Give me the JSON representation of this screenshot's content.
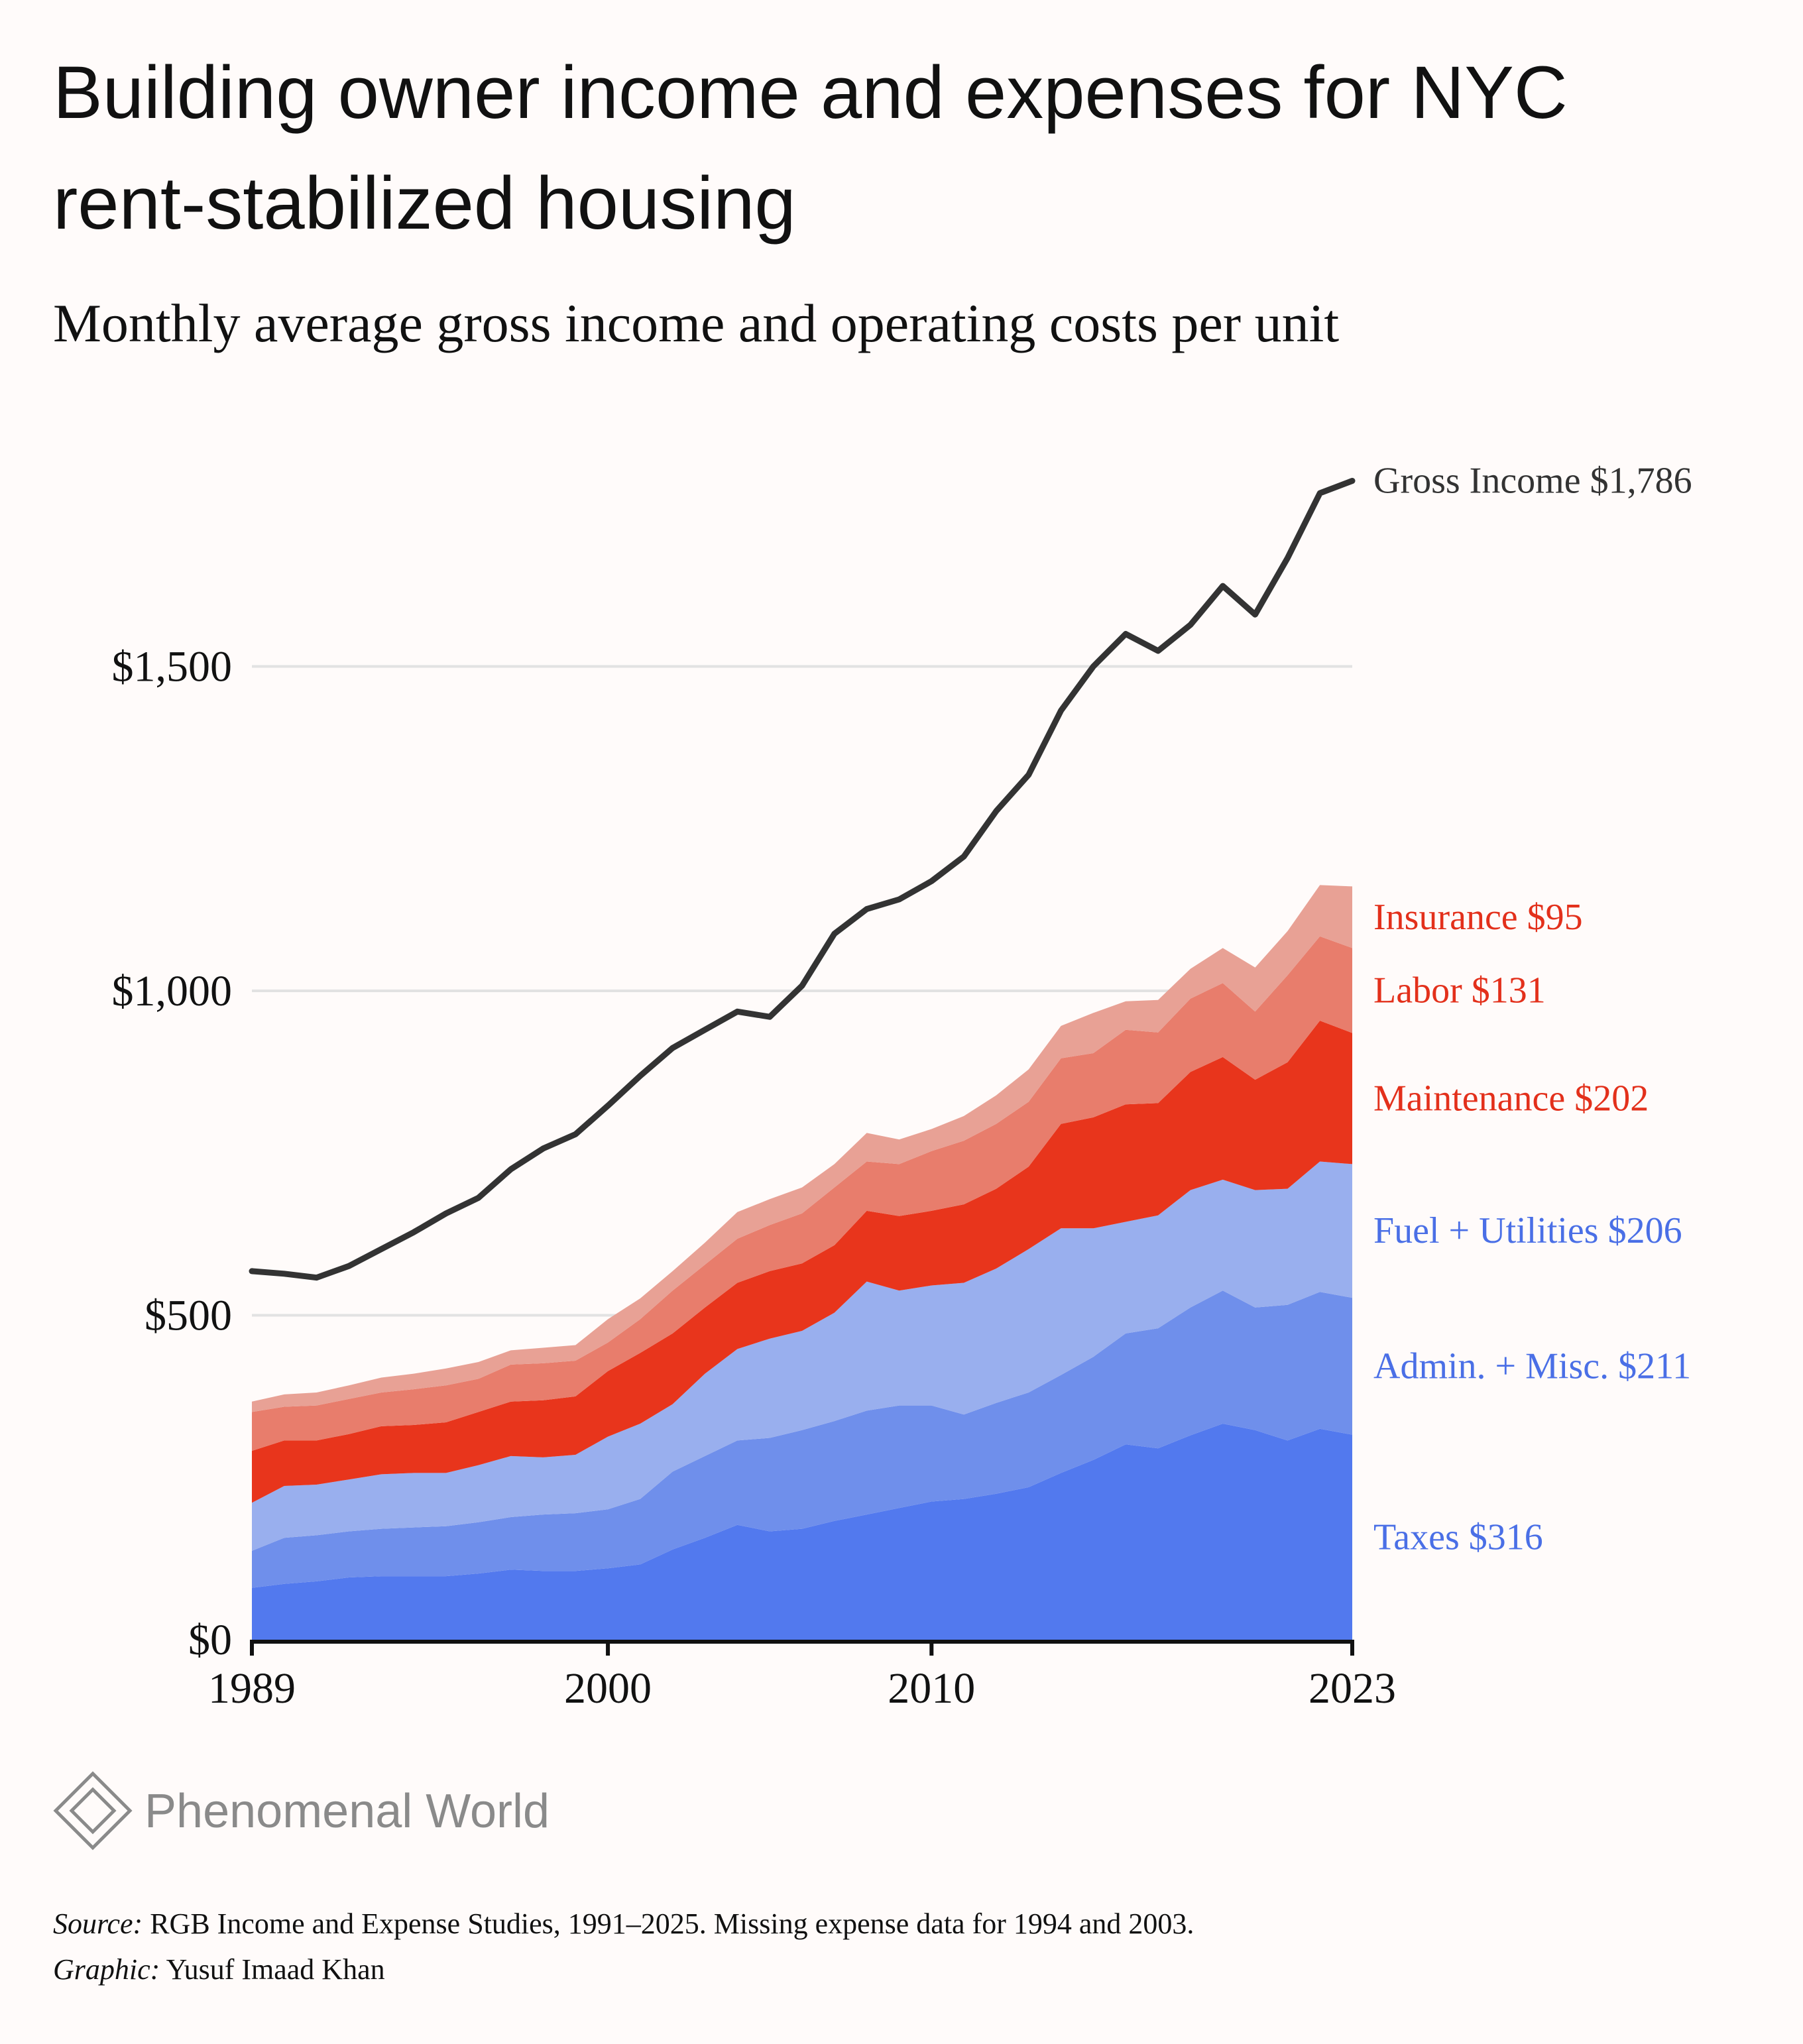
{
  "chart_data": {
    "type": "area",
    "stacked": true,
    "title": "Building owner income and expenses for NYC rent-stabilized housing",
    "subtitle": "Monthly average gross income and operating costs per unit",
    "xlabel": "",
    "ylabel": "",
    "xlim": [
      1989,
      2023
    ],
    "ylim": [
      0,
      1800
    ],
    "grid": true,
    "x_ticks": [
      {
        "value": 1989,
        "label": "1989"
      },
      {
        "value": 2000,
        "label": "2000"
      },
      {
        "value": 2010,
        "label": "2010"
      },
      {
        "value": 2023,
        "label": "2023"
      }
    ],
    "y_ticks": [
      {
        "value": 0,
        "label": "$0"
      },
      {
        "value": 500,
        "label": "$500"
      },
      {
        "value": 1000,
        "label": "$1,000"
      },
      {
        "value": 1500,
        "label": "$1,500"
      }
    ],
    "x": [
      1989,
      1990,
      1991,
      1992,
      1993,
      1994,
      1995,
      1996,
      1997,
      1998,
      1999,
      2000,
      2001,
      2002,
      2003,
      2004,
      2005,
      2006,
      2007,
      2008,
      2009,
      2010,
      2011,
      2012,
      2013,
      2014,
      2015,
      2016,
      2017,
      2018,
      2019,
      2020,
      2021,
      2022,
      2023
    ],
    "series": [
      {
        "name": "Taxes",
        "label": "Taxes $316",
        "color": "#5279ee",
        "label_color": "#4a6fe6",
        "values": [
          80,
          86,
          90,
          96,
          98,
          98,
          98,
          102,
          108,
          106,
          106,
          110,
          116,
          139,
          157,
          177,
          167,
          171,
          183,
          193,
          203,
          213,
          217,
          225,
          235,
          257,
          277,
          301,
          295,
          315,
          333,
          323,
          307,
          325,
          316
        ]
      },
      {
        "name": "Admin. + Misc.",
        "label": "Admin. + Misc. $211",
        "color": "#6f8feb",
        "label_color": "#4a6fe6",
        "values": [
          57,
          71,
          71,
          71,
          73,
          75,
          77,
          79,
          81,
          87,
          89,
          91,
          101,
          120,
          126,
          130,
          144,
          152,
          154,
          160,
          158,
          148,
          130,
          140,
          146,
          151,
          159,
          171,
          185,
          197,
          205,
          189,
          209,
          211,
          211
        ]
      },
      {
        "name": "Fuel + Utilities",
        "label": "Fuel + Utilities $206",
        "color": "#99afee",
        "label_color": "#4a6fe6",
        "values": [
          74,
          80,
          78,
          80,
          84,
          84,
          82,
          88,
          94,
          88,
          90,
          112,
          116,
          104,
          127,
          141,
          153,
          153,
          167,
          199,
          177,
          185,
          203,
          207,
          221,
          226,
          198,
          172,
          174,
          181,
          171,
          181,
          179,
          201,
          206
        ]
      },
      {
        "name": "Maintenance",
        "label": "Maintenance $202",
        "color": "#e8351c",
        "label_color": "#e3301b",
        "values": [
          80,
          70,
          68,
          70,
          74,
          74,
          78,
          82,
          84,
          88,
          90,
          101,
          109,
          109,
          102,
          102,
          104,
          104,
          104,
          109,
          115,
          115,
          121,
          123,
          127,
          161,
          171,
          181,
          173,
          182,
          189,
          170,
          195,
          217,
          202
        ]
      },
      {
        "name": "Labor",
        "label": "Labor $131",
        "color": "#e87d6c",
        "label_color": "#e3301b",
        "values": [
          60,
          52,
          54,
          54,
          52,
          55,
          57,
          51,
          57,
          57,
          55,
          44,
          52,
          66,
          66,
          68,
          71,
          77,
          89,
          76,
          80,
          92,
          98,
          100,
          100,
          101,
          99,
          115,
          109,
          113,
          114,
          105,
          134,
          130,
          131
        ]
      },
      {
        "name": "Insurance",
        "label": "Insurance $95",
        "color": "#e8a195",
        "label_color": "#e3301b",
        "values": [
          16,
          19,
          20,
          21,
          23,
          24,
          26,
          26,
          22,
          24,
          24,
          36,
          32,
          30,
          34,
          41,
          40,
          40,
          36,
          44,
          38,
          34,
          38,
          44,
          50,
          50,
          62,
          44,
          50,
          46,
          54,
          68,
          68,
          79,
          95
        ]
      }
    ],
    "line": {
      "name": "Gross Income",
      "label": "Gross Income $1,786",
      "color": "#333333",
      "values": [
        568,
        564,
        558,
        576,
        602,
        628,
        657,
        681,
        725,
        757,
        779,
        823,
        869,
        912,
        940,
        968,
        960,
        1008,
        1088,
        1126,
        1141,
        1169,
        1207,
        1277,
        1333,
        1432,
        1500,
        1550,
        1524,
        1564,
        1624,
        1580,
        1667,
        1767,
        1786
      ]
    }
  },
  "logo": {
    "text": "Phenomenal World"
  },
  "footer": {
    "source_label": "Source:",
    "source_text": " RGB Income and Expense Studies, 1991–2025. Missing expense data for 1994 and 2003.",
    "graphic_label": "Graphic:",
    "graphic_text": " Yusuf Imaad Khan"
  }
}
